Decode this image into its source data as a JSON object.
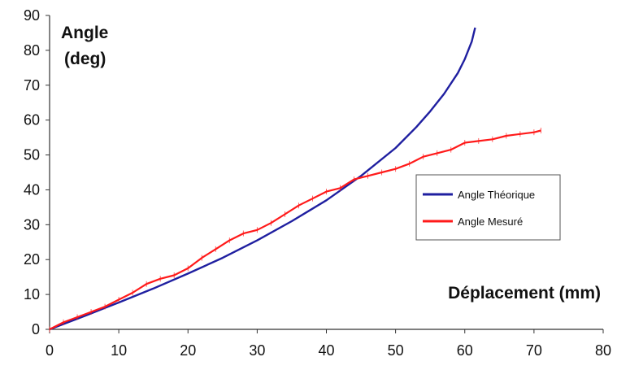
{
  "chart_data": {
    "type": "line",
    "title": "",
    "ylabel_line1": "Angle",
    "ylabel_line2": "(deg)",
    "xlabel": "Déplacement (mm)",
    "xlim": [
      0,
      80
    ],
    "ylim": [
      0,
      90
    ],
    "x_ticks": [
      "0",
      "10",
      "20",
      "30",
      "40",
      "50",
      "60",
      "70",
      "80"
    ],
    "y_ticks": [
      "0",
      "10",
      "20",
      "30",
      "40",
      "50",
      "60",
      "70",
      "80",
      "90"
    ],
    "grid": false,
    "legend_position": "right",
    "series": [
      {
        "name": "Angle Théorique",
        "color": "#1f1fa0",
        "x": [
          0,
          5,
          10,
          15,
          20,
          25,
          30,
          35,
          40,
          45,
          50,
          53,
          55,
          57,
          59,
          60,
          61,
          61.5
        ],
        "y": [
          0,
          3.8,
          7.7,
          11.7,
          16,
          20.5,
          25.5,
          31,
          37,
          44,
          52,
          58,
          62.5,
          67.5,
          73.5,
          77.5,
          82.5,
          86.5
        ]
      },
      {
        "name": "Angle Mesuré",
        "color": "#ff1a1a",
        "x": [
          0,
          2,
          4,
          6,
          8,
          10,
          12,
          14,
          16,
          18,
          20,
          22,
          24,
          26,
          28,
          30,
          32,
          34,
          36,
          38,
          40,
          42,
          44,
          46,
          48,
          50,
          52,
          54,
          56,
          58,
          60,
          62,
          64,
          66,
          68,
          70,
          71
        ],
        "y": [
          0,
          2,
          3.5,
          5,
          6.5,
          8.5,
          10.5,
          13,
          14.5,
          15.5,
          17.5,
          20.5,
          23,
          25.5,
          27.5,
          28.5,
          30.5,
          33,
          35.5,
          37.5,
          39.5,
          40.5,
          43,
          44,
          45,
          46,
          47.5,
          49.5,
          50.5,
          51.5,
          53.5,
          54,
          54.5,
          55.5,
          56,
          56.5,
          57
        ]
      }
    ]
  }
}
